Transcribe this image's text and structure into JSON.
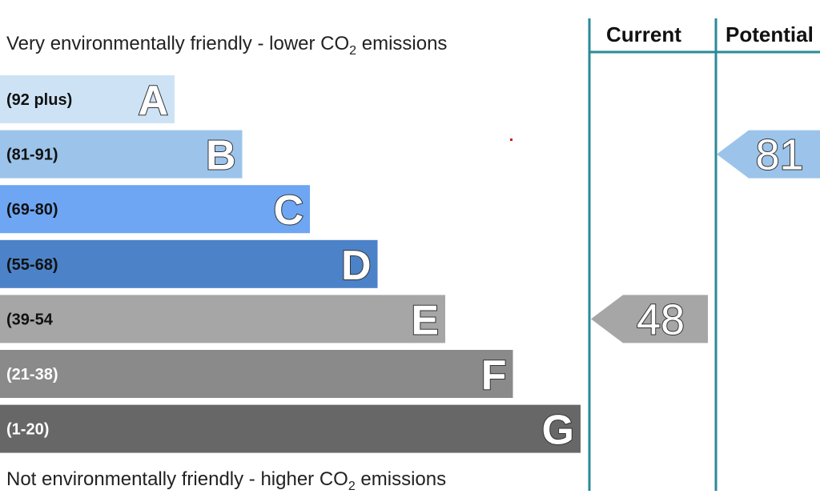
{
  "top_caption": {
    "text": "Very environmentally friendly - lower CO",
    "sub": "2",
    "tail": " emissions"
  },
  "bottom_caption": {
    "text": "Not environmentally friendly - higher CO",
    "sub": "2",
    "tail": " emissions"
  },
  "headers": {
    "current": "Current",
    "potential": "Potential"
  },
  "colors": {
    "divider": "#2a8a97"
  },
  "chart_data": {
    "type": "bar",
    "bands": [
      {
        "letter": "A",
        "range": "(92 plus)",
        "color": "#cde3f5",
        "text_color": "#111111"
      },
      {
        "letter": "B",
        "range": "(81-91)",
        "color": "#9cc4ea",
        "text_color": "#111111"
      },
      {
        "letter": "C",
        "range": "(69-80)",
        "color": "#6ea6f3",
        "text_color": "#111111"
      },
      {
        "letter": "D",
        "range": "(55-68)",
        "color": "#4c82c8",
        "text_color": "#111111"
      },
      {
        "letter": "E",
        "range": "(39-54",
        "color": "#a6a6a6",
        "text_color": "#111111"
      },
      {
        "letter": "F",
        "range": "(21-38)",
        "color": "#8a8a8a",
        "text_color": "#ffffff"
      },
      {
        "letter": "G",
        "range": "(1-20)",
        "color": "#676767",
        "text_color": "#ffffff"
      }
    ],
    "current": {
      "value": 48,
      "band": "E",
      "color": "#a6a6a6"
    },
    "potential": {
      "value": 81,
      "band": "B",
      "color": "#9cc4ea"
    }
  }
}
